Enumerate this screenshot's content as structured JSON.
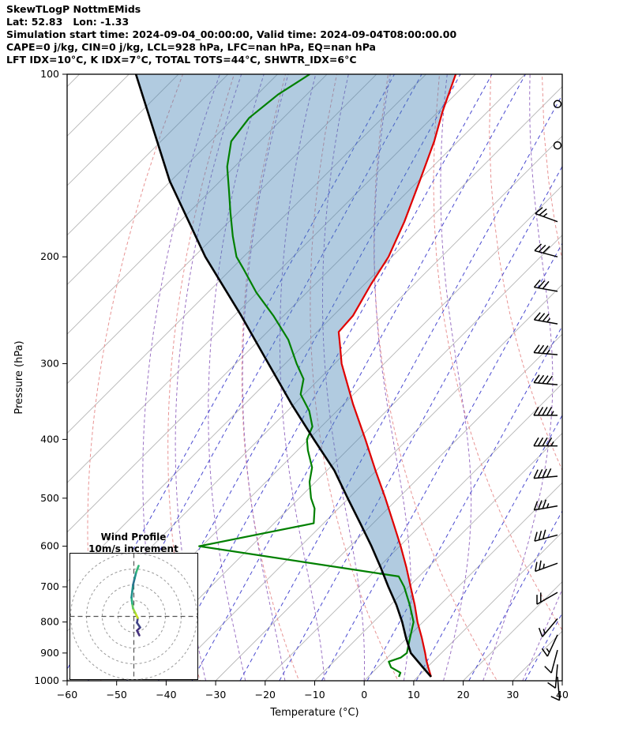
{
  "header": {
    "lines": [
      "SkewTLogP NottmEMids",
      "Lat: 52.83   Lon: -1.33",
      "Simulation start time: 2024-09-04_00:00:00, Valid time: 2024-09-04T08:00:00.00",
      "CAPE=0 j/kg, CIN=0 j/kg, LCL=928 hPa, LFC=nan hPa, EQ=nan hPa",
      "LFT IDX=10°C, K IDX=7°C, TOTAL TOTS=44°C, SHWTR_IDX=6°C"
    ]
  },
  "chart_data": {
    "type": "line",
    "title": "SkewTLogP NottmEMids",
    "xlabel": "Temperature (°C)",
    "ylabel": "Pressure (hPa)",
    "xlim": [
      -60,
      40
    ],
    "pressure_lim": [
      100,
      1000
    ],
    "skew_deg": 45,
    "x_ticks": [
      -60,
      -50,
      -40,
      -30,
      -20,
      -10,
      0,
      10,
      20,
      30,
      40
    ],
    "p_ticks": [
      100,
      200,
      300,
      400,
      500,
      600,
      700,
      800,
      900,
      1000
    ],
    "grid": {
      "isotherm_step_C": 10,
      "isotherm_color": "#b5b5b5",
      "dry_adiabat_color": "#e89494",
      "moist_adiabat_color": "#9b72c4",
      "mixing_ratio_color": "#4a4ad0",
      "dry_adiabats_theta_K": [
        220,
        240,
        260,
        280,
        300,
        320,
        340,
        360,
        380,
        400,
        420,
        440
      ],
      "moist_adiabats_start_C": [
        -40,
        -32,
        -24,
        -16,
        -8,
        0,
        8,
        16,
        24,
        32
      ],
      "mixing_ratio_g_kg": [
        0.01,
        0.02,
        0.05,
        0.1,
        0.2,
        0.5,
        1,
        2,
        4,
        8,
        16,
        32
      ]
    },
    "series": [
      {
        "name": "temperature",
        "color": "#e00000",
        "points": [
          [
            985,
            12.7
          ],
          [
            950,
            10.2
          ],
          [
            925,
            8.4
          ],
          [
            900,
            6.7
          ],
          [
            850,
            3.0
          ],
          [
            800,
            -1.1
          ],
          [
            750,
            -5.1
          ],
          [
            700,
            -9.6
          ],
          [
            650,
            -14.4
          ],
          [
            600,
            -19.8
          ],
          [
            550,
            -25.9
          ],
          [
            500,
            -32.6
          ],
          [
            450,
            -40.2
          ],
          [
            400,
            -48.5
          ],
          [
            350,
            -58.1
          ],
          [
            300,
            -68.6
          ],
          [
            280,
            -72.6
          ],
          [
            266,
            -75.6
          ],
          [
            250,
            -76.0
          ],
          [
            222,
            -78.7
          ],
          [
            200,
            -80.7
          ],
          [
            175,
            -84.6
          ],
          [
            150,
            -89.7
          ],
          [
            129,
            -94.8
          ],
          [
            115,
            -99.2
          ],
          [
            100,
            -104.0
          ]
        ]
      },
      {
        "name": "dewpoint",
        "color": "#008000",
        "points": [
          [
            985,
            6.2
          ],
          [
            970,
            5.7
          ],
          [
            950,
            2.7
          ],
          [
            930,
            1.1
          ],
          [
            916,
            2.7
          ],
          [
            900,
            3.0
          ],
          [
            850,
            0.6
          ],
          [
            800,
            -1.9
          ],
          [
            750,
            -6.1
          ],
          [
            700,
            -10.9
          ],
          [
            673,
            -14.1
          ],
          [
            600,
            -60.5
          ],
          [
            550,
            -42.0
          ],
          [
            520,
            -44.8
          ],
          [
            500,
            -47.6
          ],
          [
            470,
            -51.2
          ],
          [
            445,
            -53.6
          ],
          [
            417,
            -57.9
          ],
          [
            400,
            -60.3
          ],
          [
            381,
            -61.8
          ],
          [
            359,
            -65.6
          ],
          [
            337,
            -70.7
          ],
          [
            318,
            -73.2
          ],
          [
            300,
            -77.7
          ],
          [
            274,
            -84.2
          ],
          [
            250,
            -92.1
          ],
          [
            229,
            -100.2
          ],
          [
            209,
            -107.7
          ],
          [
            200,
            -111.4
          ],
          [
            185,
            -116.3
          ],
          [
            169,
            -121.6
          ],
          [
            155,
            -126.5
          ],
          [
            142,
            -131.5
          ],
          [
            129,
            -135.8
          ],
          [
            118,
            -136.9
          ],
          [
            108,
            -135.8
          ],
          [
            100,
            -133.5
          ]
        ]
      },
      {
        "name": "parcel",
        "color": "#000000",
        "points": [
          [
            985,
            12.7
          ],
          [
            950,
            9.1
          ],
          [
            900,
            3.8
          ],
          [
            850,
            -0.2
          ],
          [
            800,
            -4.2
          ],
          [
            750,
            -8.8
          ],
          [
            700,
            -14.1
          ],
          [
            650,
            -19.6
          ],
          [
            600,
            -25.7
          ],
          [
            550,
            -32.6
          ],
          [
            500,
            -40.2
          ],
          [
            450,
            -48.5
          ],
          [
            400,
            -58.9
          ],
          [
            350,
            -70.5
          ],
          [
            300,
            -83.4
          ],
          [
            250,
            -98.6
          ],
          [
            200,
            -117.7
          ],
          [
            150,
            -140.2
          ],
          [
            100,
            -168.6
          ]
        ]
      }
    ],
    "shading": {
      "between": [
        "parcel",
        "temperature"
      ],
      "color": "#4682b4",
      "opacity": 0.42
    },
    "wind_barbs": {
      "units": "kt",
      "levels": [
        {
          "p": 112,
          "spd": 0,
          "dir": 0
        },
        {
          "p": 131,
          "spd": 0,
          "dir": 0
        },
        {
          "p": 175,
          "spd": 25,
          "dir": 290
        },
        {
          "p": 200,
          "spd": 30,
          "dir": 285
        },
        {
          "p": 228,
          "spd": 30,
          "dir": 280
        },
        {
          "p": 258,
          "spd": 35,
          "dir": 280
        },
        {
          "p": 290,
          "spd": 35,
          "dir": 275
        },
        {
          "p": 325,
          "spd": 40,
          "dir": 275
        },
        {
          "p": 365,
          "spd": 45,
          "dir": 270
        },
        {
          "p": 410,
          "spd": 45,
          "dir": 270
        },
        {
          "p": 460,
          "spd": 40,
          "dir": 265
        },
        {
          "p": 515,
          "spd": 35,
          "dir": 260
        },
        {
          "p": 575,
          "spd": 30,
          "dir": 255
        },
        {
          "p": 640,
          "spd": 25,
          "dir": 250
        },
        {
          "p": 715,
          "spd": 20,
          "dir": 240
        },
        {
          "p": 790,
          "spd": 15,
          "dir": 220
        },
        {
          "p": 840,
          "spd": 15,
          "dir": 205
        },
        {
          "p": 890,
          "spd": 10,
          "dir": 195
        },
        {
          "p": 940,
          "spd": 10,
          "dir": 185
        },
        {
          "p": 985,
          "spd": 10,
          "dir": 175
        }
      ]
    },
    "hodograph": {
      "title_line1": "Wind Profile",
      "title_line2": "10m/s increment",
      "ring_increment_ms": 10,
      "trace_uv_ms": [
        {
          "u": 3.5,
          "v": -12,
          "c": "#440154"
        },
        {
          "u": 2,
          "v": -9,
          "c": "#46327e"
        },
        {
          "u": 4,
          "v": -7,
          "c": "#46327e"
        },
        {
          "u": 2,
          "v": -4,
          "c": "#414487"
        },
        {
          "u": 2.5,
          "v": -1,
          "c": "#414487"
        },
        {
          "u": 1,
          "v": 2,
          "c": "#c8e020"
        },
        {
          "u": -0.5,
          "v": 5,
          "c": "#a0da39"
        },
        {
          "u": -1,
          "v": 8,
          "c": "#5ec962"
        },
        {
          "u": -1.5,
          "v": 12,
          "c": "#28ae80"
        },
        {
          "u": -1,
          "v": 16,
          "c": "#21918c"
        },
        {
          "u": -0.5,
          "v": 20,
          "c": "#21918c"
        },
        {
          "u": 0.5,
          "v": 24,
          "c": "#2c728e"
        },
        {
          "u": 1.5,
          "v": 28,
          "c": "#21918c"
        },
        {
          "u": 3,
          "v": 32,
          "c": "#35b779"
        }
      ]
    }
  }
}
